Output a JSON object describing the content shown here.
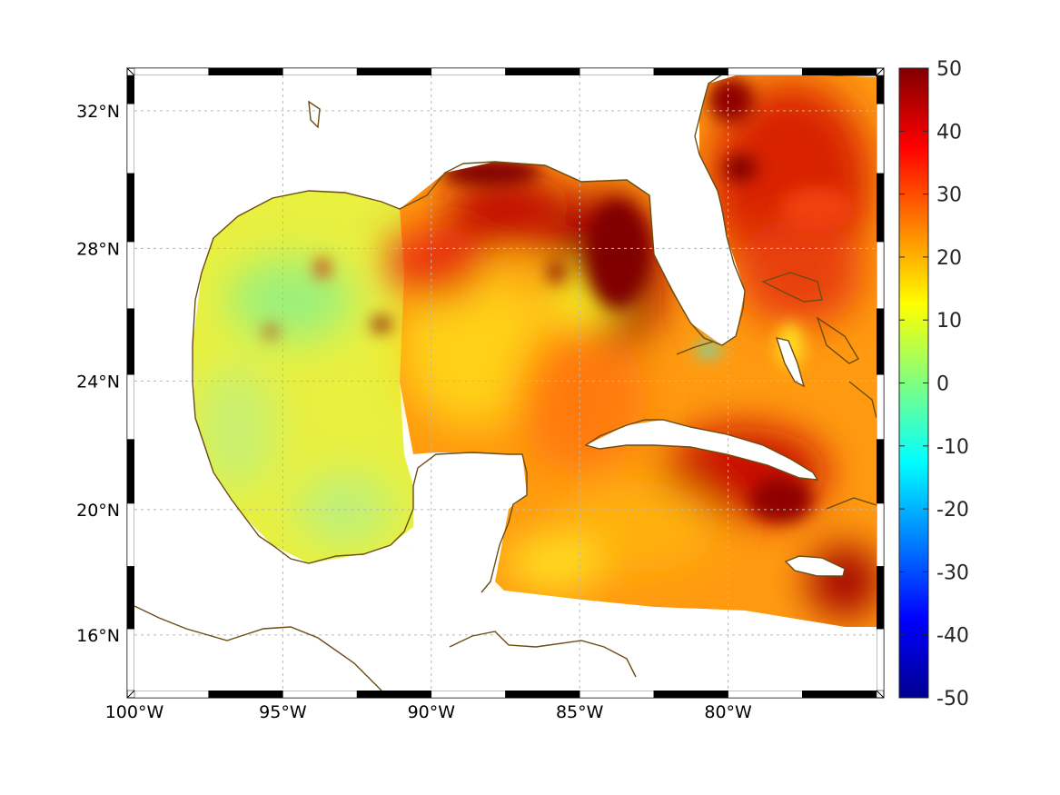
{
  "map": {
    "type": "heatmap",
    "projection": "mercator",
    "lon_range": [
      -100,
      -75
    ],
    "lat_range": [
      14.2,
      33
    ],
    "lon_ticks": [
      {
        "value": -100,
        "label": "100°W"
      },
      {
        "value": -95,
        "label": "95°W"
      },
      {
        "value": -90,
        "label": "90°W"
      },
      {
        "value": -85,
        "label": "85°W"
      },
      {
        "value": -80,
        "label": "80°W"
      }
    ],
    "lat_ticks": [
      {
        "value": 16,
        "label": "16°N"
      },
      {
        "value": 20,
        "label": "20°N"
      },
      {
        "value": 24,
        "label": "24°N"
      },
      {
        "value": 28,
        "label": "28°N"
      },
      {
        "value": 32,
        "label": "32°N"
      }
    ],
    "grid": true,
    "coastline_color": "#6b4c12",
    "colorbar": {
      "colormap": "jet",
      "range": [
        -50,
        50
      ],
      "ticks": [
        50,
        40,
        30,
        20,
        10,
        0,
        -10,
        -20,
        -30,
        -40,
        -50
      ],
      "placement": "right"
    }
  }
}
